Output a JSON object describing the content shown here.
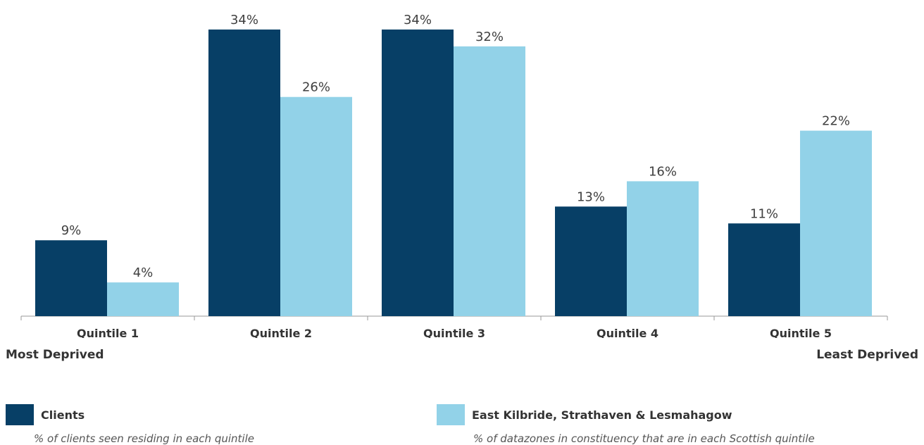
{
  "chart_data": {
    "type": "bar",
    "categories": [
      "Quintile 1",
      "Quintile 2",
      "Quintile 3",
      "Quintile 4",
      "Quintile 5"
    ],
    "series": [
      {
        "name": "Clients",
        "values": [
          9,
          34,
          34,
          13,
          11
        ],
        "labels": [
          "9%",
          "34%",
          "34%",
          "13%",
          "11%"
        ],
        "color": "#073F66"
      },
      {
        "name": "East Kilbride, Strathaven & Lesmahagow",
        "values": [
          4,
          26,
          32,
          16,
          22
        ],
        "labels": [
          "4%",
          "26%",
          "32%",
          "16%",
          "22%"
        ],
        "color": "#92D2E8"
      }
    ],
    "ylim": [
      0,
      37
    ],
    "grid": false,
    "axis_end_labels": {
      "left": "Most Deprived",
      "right": "Least Deprived"
    }
  },
  "legend": {
    "items": [
      {
        "name": "Clients",
        "description": "% of clients seen residing in each quintile"
      },
      {
        "name": "East Kilbride, Strathaven & Lesmahagow",
        "description": "% of datazones in constituency that are in each Scottish quintile"
      }
    ]
  }
}
